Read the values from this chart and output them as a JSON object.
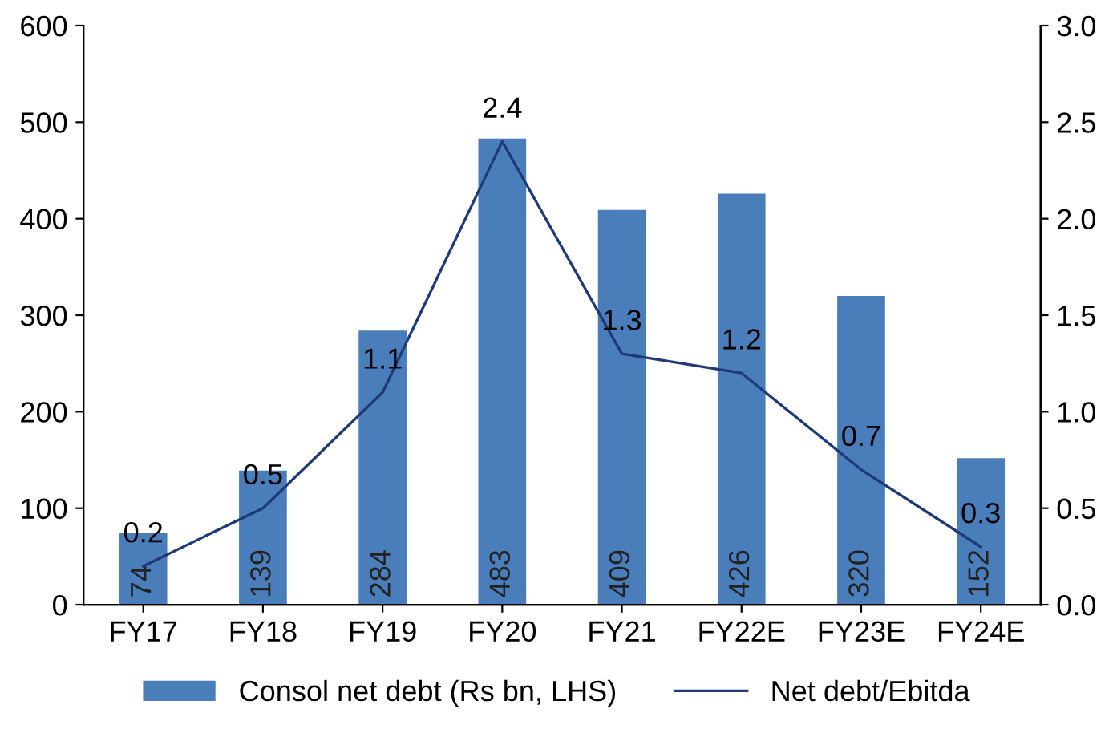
{
  "chart_data": {
    "type": "bar",
    "categories": [
      "FY17",
      "FY18",
      "FY19",
      "FY20",
      "FY21",
      "FY22E",
      "FY23E",
      "FY24E"
    ],
    "series": [
      {
        "name": "Consol net debt (Rs bn, LHS)",
        "color": "#4a7ebb",
        "values": [
          74,
          139,
          284,
          483,
          409,
          426,
          320,
          152
        ]
      },
      {
        "name": "Net debt/Ebitda",
        "type": "line",
        "axis": "y2",
        "color": "#1f3a78",
        "values": [
          0.2,
          0.5,
          1.1,
          2.4,
          1.3,
          1.2,
          0.7,
          0.3
        ]
      }
    ],
    "ylim": [
      0,
      600
    ],
    "yticks": [
      0,
      100,
      200,
      300,
      400,
      500,
      600
    ],
    "y2lim": [
      0,
      3.0
    ],
    "y2ticks": [
      {
        "value": 0,
        "label": "0.0"
      },
      {
        "value": 0.5,
        "label": "0.5"
      },
      {
        "value": 1.0,
        "label": "1.0"
      },
      {
        "value": 1.5,
        "label": "1.5"
      },
      {
        "value": 2.0,
        "label": "2.0"
      },
      {
        "value": 2.5,
        "label": "2.5"
      },
      {
        "value": 3.0,
        "label": "3.0"
      }
    ],
    "data_labels": true,
    "legend": "bottom",
    "grid": false,
    "marker": "none",
    "line_style": "solid"
  }
}
